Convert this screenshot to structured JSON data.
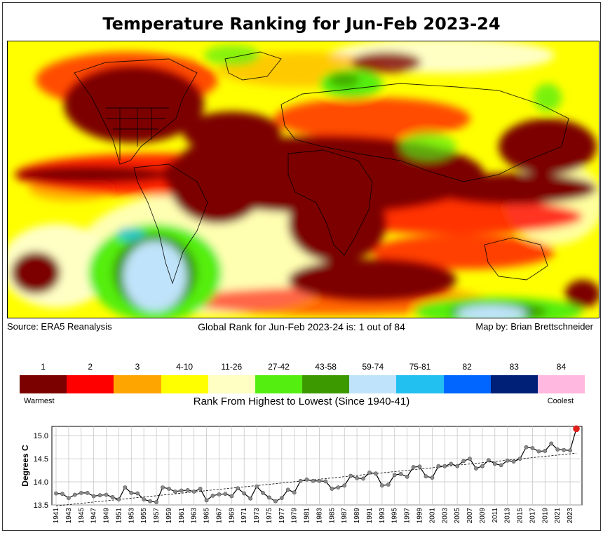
{
  "title": "Temperature Ranking for Jun-Feb 2023-24",
  "captions": {
    "source": "Source: ERA5 Reanalysis",
    "global_rank": "Global Rank for Jun-Feb 2023-24 is: 1 out of 84",
    "credit": "Map by: Brian Brettschneider"
  },
  "legend": {
    "title": "Rank From Highest to Lowest (Since 1940-41)",
    "warm_label": "Warmest",
    "cool_label": "Coolest",
    "bins": [
      {
        "label": "1",
        "color": "#7b0000"
      },
      {
        "label": "2",
        "color": "#ff0000"
      },
      {
        "label": "3",
        "color": "#ffa500"
      },
      {
        "label": "4-10",
        "color": "#ffff00"
      },
      {
        "label": "11-26",
        "color": "#ffffc4"
      },
      {
        "label": "27-42",
        "color": "#55ee11"
      },
      {
        "label": "43-58",
        "color": "#3d9900"
      },
      {
        "label": "59-74",
        "color": "#bfe3fa"
      },
      {
        "label": "75-81",
        "color": "#22c0f0"
      },
      {
        "label": "82",
        "color": "#0066ff"
      },
      {
        "label": "83",
        "color": "#002077"
      },
      {
        "label": "84",
        "color": "#ffb8e0"
      }
    ]
  },
  "chart_data": {
    "type": "line",
    "ylabel": "Degrees C",
    "ylim": [
      13.5,
      15.2
    ],
    "yticks": [
      13.5,
      14.0,
      14.5,
      15.0
    ],
    "grid": true,
    "x": [
      1941,
      1942,
      1943,
      1944,
      1945,
      1946,
      1947,
      1948,
      1949,
      1950,
      1951,
      1952,
      1953,
      1954,
      1955,
      1956,
      1957,
      1958,
      1959,
      1960,
      1961,
      1962,
      1963,
      1964,
      1965,
      1966,
      1967,
      1968,
      1969,
      1970,
      1971,
      1972,
      1973,
      1974,
      1975,
      1976,
      1977,
      1978,
      1979,
      1980,
      1981,
      1982,
      1983,
      1984,
      1985,
      1986,
      1987,
      1988,
      1989,
      1990,
      1991,
      1992,
      1993,
      1994,
      1995,
      1996,
      1997,
      1998,
      1999,
      2000,
      2001,
      2002,
      2003,
      2004,
      2005,
      2006,
      2007,
      2008,
      2009,
      2010,
      2011,
      2012,
      2013,
      2014,
      2015,
      2016,
      2017,
      2018,
      2019,
      2020,
      2021,
      2022,
      2023,
      2024
    ],
    "xtick_labels": [
      "1941",
      "1943",
      "1945",
      "1947",
      "1949",
      "1951",
      "1953",
      "1955",
      "1957",
      "1959",
      "1961",
      "1963",
      "1965",
      "1967",
      "1969",
      "1971",
      "1973",
      "1975",
      "1977",
      "1979",
      "1981",
      "1983",
      "1985",
      "1987",
      "1989",
      "1991",
      "1993",
      "1995",
      "1997",
      "1999",
      "2001",
      "2003",
      "2005",
      "2007",
      "2009",
      "2011",
      "2013",
      "2015",
      "2017",
      "2019",
      "2021",
      "2023"
    ],
    "values": [
      13.75,
      13.74,
      13.65,
      13.72,
      13.76,
      13.76,
      13.69,
      13.71,
      13.72,
      13.67,
      13.62,
      13.88,
      13.76,
      13.75,
      13.62,
      13.58,
      13.56,
      13.88,
      13.85,
      13.79,
      13.81,
      13.82,
      13.79,
      13.85,
      13.6,
      13.7,
      13.73,
      13.74,
      13.69,
      13.86,
      13.75,
      13.64,
      13.9,
      13.76,
      13.66,
      13.58,
      13.65,
      13.83,
      13.77,
      14.02,
      14.05,
      14.02,
      14.02,
      14.01,
      13.85,
      13.88,
      13.92,
      14.13,
      14.08,
      14.07,
      14.2,
      14.18,
      13.92,
      13.94,
      14.15,
      14.17,
      14.11,
      14.32,
      14.33,
      14.12,
      14.09,
      14.34,
      14.34,
      14.39,
      14.34,
      14.45,
      14.5,
      14.29,
      14.34,
      14.47,
      14.39,
      14.36,
      14.46,
      14.44,
      14.5,
      14.75,
      14.73,
      14.66,
      14.67,
      14.83,
      14.7,
      14.69,
      14.68,
      15.15
    ],
    "trend": {
      "start": 13.48,
      "end": 14.62
    },
    "highlight_last": true,
    "highlight_color": "#e0201a"
  }
}
